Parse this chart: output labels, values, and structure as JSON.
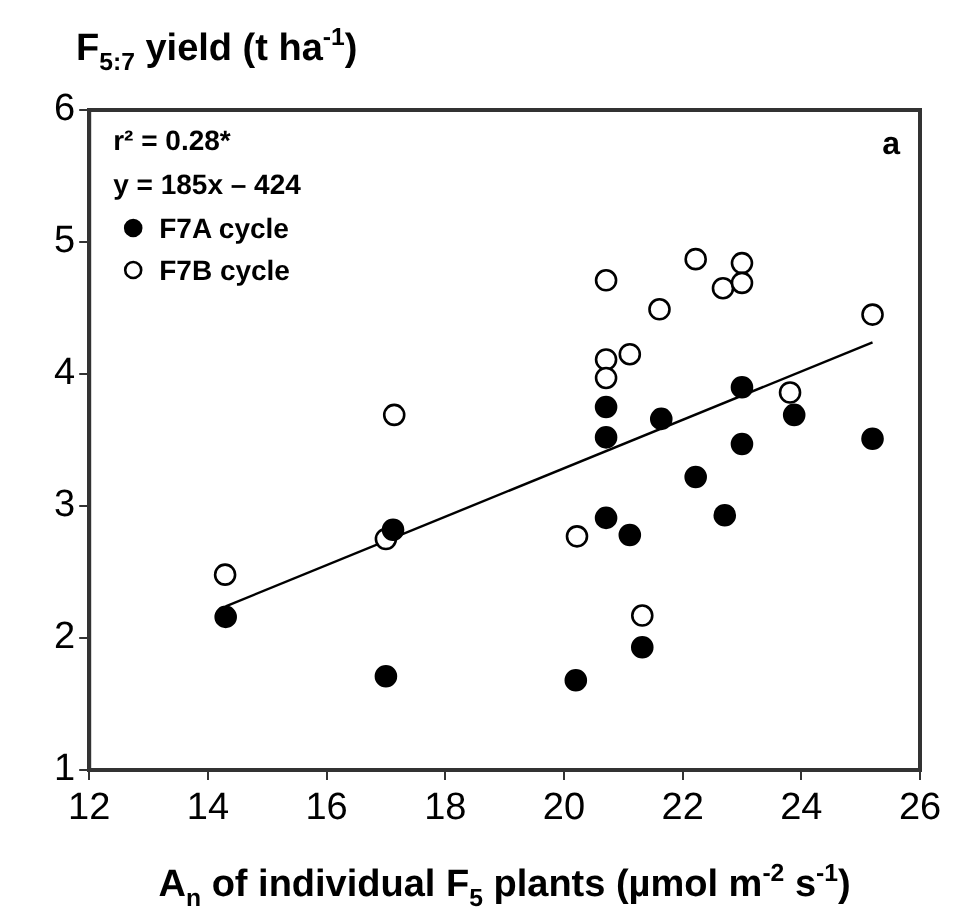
{
  "chart_data": {
    "type": "scatter",
    "xlabel": "A$_{n}$ of individual F$_{5}$ plants (µmol m$^{-2}$ s$^{-1}$)",
    "ylabel": "F$_{5:7}$ yield (t ha$^{-1}$)",
    "annotations": [
      "r² = 0.28*",
      "y = 185x – 424",
      "a"
    ],
    "xlim": [
      12,
      26
    ],
    "xticks": [
      12,
      14,
      16,
      18,
      20,
      22,
      24,
      26
    ],
    "ylim": [
      1,
      6
    ],
    "yticks": [
      1,
      2,
      3,
      4,
      5,
      6
    ],
    "grid": false,
    "legend": "top left",
    "marker": "circle",
    "series": [
      {
        "name": "F7A cycle",
        "color": "#000000",
        "x": [
          14.3,
          17.0,
          17.12,
          20.2,
          20.71,
          20.71,
          20.71,
          21.11,
          21.32,
          21.64,
          22.22,
          22.71,
          23.0,
          23.0,
          23.88,
          25.2
        ],
        "values": [
          2.16,
          1.71,
          2.82,
          1.68,
          3.75,
          3.52,
          2.91,
          2.78,
          1.93,
          3.66,
          3.22,
          2.93,
          3.9,
          3.47,
          3.69,
          3.51
        ]
      },
      {
        "name": "F7B cycle",
        "color": "#ffffff",
        "x": [
          14.29,
          17.14,
          17.0,
          20.22,
          20.71,
          20.71,
          20.71,
          21.11,
          21.32,
          21.61,
          22.22,
          22.68,
          23.0,
          23.0,
          23.81,
          25.2
        ],
        "values": [
          2.48,
          3.69,
          2.75,
          2.77,
          4.71,
          4.11,
          3.97,
          4.15,
          2.17,
          4.49,
          4.87,
          4.65,
          4.84,
          4.69,
          3.86,
          4.45
        ]
      },
      {
        "type": "line",
        "marker": "none",
        "color": "#000000",
        "x": [
          14.3,
          25.2
        ],
        "values": [
          2.24,
          4.24
        ]
      }
    ]
  }
}
